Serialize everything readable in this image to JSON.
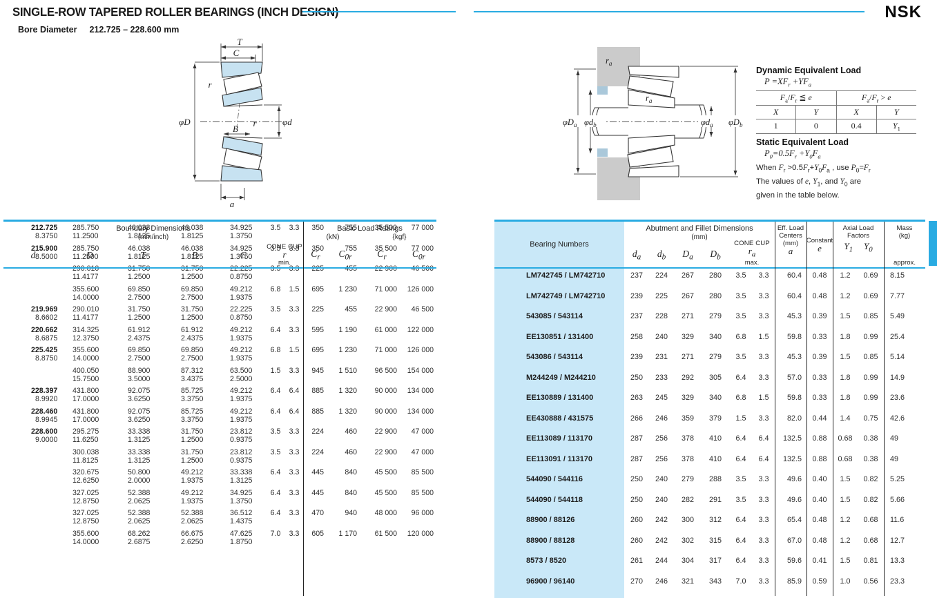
{
  "header": {
    "title": "SINGLE-ROW TAPERED ROLLER BEARINGS (INCH DESIGN)",
    "bore_label": "Bore Diameter",
    "bore_value": "212.725 – 228.600 mm",
    "brand": "NSK"
  },
  "colors": {
    "accent": "#29abe2",
    "bearing_column_bg": "#c9e8f8",
    "diagram_ring_blue": "#c7e2f1",
    "housing_gray": "#cbcbcb"
  },
  "diagram_left": {
    "labels": {
      "T": "T",
      "C": "C",
      "r_top": "r",
      "B": "B",
      "r_mid": "r",
      "phiD": "φD",
      "phid": "φd",
      "a": "a"
    }
  },
  "diagram_right": {
    "labels": {
      "ra_top": {
        "main": "r",
        "sub": "a"
      },
      "ra_mid": {
        "main": "r",
        "sub": "a"
      },
      "phiDa": {
        "main": "φD",
        "sub": "a"
      },
      "phidb": {
        "main": "φd",
        "sub": "b"
      },
      "phida": {
        "main": "φd",
        "sub": "a"
      },
      "phiDb": {
        "main": "φD",
        "sub": "b"
      }
    }
  },
  "equivalent_load": {
    "dynamic_title": "Dynamic Equivalent Load",
    "dynamic_formula_html": "<i>P</i> =<i>XF</i><sub>r</sub> +<i>YF</i><sub>a</sub>",
    "table": {
      "cond_le_html": "<i>F</i><sub>a</sub>/<i>F</i><sub>r</sub> ≦ <i>e</i>",
      "cond_gt_html": "<i>F</i><sub>a</sub>/<i>F</i><sub>r</sub> &gt; <i>e</i>",
      "col_headers_html": [
        "<i>X</i>",
        "<i>Y</i>",
        "<i>X</i>",
        "<i>Y</i>"
      ],
      "values_html": [
        "1",
        "0",
        "0.4",
        "<i>Y</i><sub>1</sub>"
      ]
    },
    "static_title": "Static Equivalent Load",
    "static_formula_html": "<i>P</i><sub>0</sub>=0.5<i>F</i><sub>r</sub> +<i>Y</i><sub>0</sub><i>F</i><sub>a</sub>",
    "note1_html": "When <i>F</i><sub>r</sub> &gt;0.5<i>F</i><sub>r</sub>+<i>Y</i><sub>0</sub><i>F</i><sub>a</sub> , use <i>P</i><sub>0</sub>=<i>F</i><sub>r</sub>",
    "note2_html": "The values of <i>e</i>, <i>Y</i><sub>1</sub>, and <i>Y</i><sub>0</sub> are",
    "note3": "given in the table below."
  },
  "left_table": {
    "group1": "Boundary Dimensions",
    "group1_sub": "(mm/inch)",
    "group2": "Basic Load Ratings",
    "group2_kn": "(kN)",
    "group2_kgf": "{kgf}",
    "cone": "CONE",
    "cup": "CUP",
    "r_html": "<i>r</i>",
    "r_min": "min.",
    "cols_html": [
      "<i>d</i>",
      "<i>D</i>",
      "<i>T</i>",
      "<i>B</i>",
      "<i>C</i>"
    ],
    "load_cols_html": [
      "<i>C</i><sub>r</sub>",
      "<i>C</i><sub>0r</sub>",
      "<i>C</i><sub>r</sub>",
      "<i>C</i><sub>0r</sub>"
    ],
    "rows": [
      {
        "d": {
          "mm": "212.725",
          "in": "8.3750"
        },
        "D": {
          "mm": "285.750",
          "in": "11.2500"
        },
        "T": {
          "mm": "46.038",
          "in": "1.8125"
        },
        "B": {
          "mm": "46.038",
          "in": "1.8125"
        },
        "C": {
          "mm": "34.925",
          "in": "1.3750"
        },
        "r_cone": "3.5",
        "r_cup": "3.3",
        "cr_kn": "350",
        "c0r_kn": "755",
        "cr_kgf": "35 500",
        "c0r_kgf": "77 000"
      },
      {
        "d": {
          "mm": "215.900",
          "in": "8.5000"
        },
        "D": {
          "mm": "285.750",
          "in": "11.2500"
        },
        "T": {
          "mm": "46.038",
          "in": "1.8125"
        },
        "B": {
          "mm": "46.038",
          "in": "1.8125"
        },
        "C": {
          "mm": "34.925",
          "in": "1.3750"
        },
        "r_cone": "3.5",
        "r_cup": "3.3",
        "cr_kn": "350",
        "c0r_kn": "755",
        "cr_kgf": "35 500",
        "c0r_kgf": "77 000"
      },
      {
        "d": {
          "mm": "",
          "in": ""
        },
        "D": {
          "mm": "290.010",
          "in": "11.4177"
        },
        "T": {
          "mm": "31.750",
          "in": "1.2500"
        },
        "B": {
          "mm": "31.750",
          "in": "1.2500"
        },
        "C": {
          "mm": "22.225",
          "in": "0.8750"
        },
        "r_cone": "3.5",
        "r_cup": "3.3",
        "cr_kn": "225",
        "c0r_kn": "455",
        "cr_kgf": "22 900",
        "c0r_kgf": "46 500"
      },
      {
        "d": {
          "mm": "",
          "in": ""
        },
        "D": {
          "mm": "355.600",
          "in": "14.0000"
        },
        "T": {
          "mm": "69.850",
          "in": "2.7500"
        },
        "B": {
          "mm": "69.850",
          "in": "2.7500"
        },
        "C": {
          "mm": "49.212",
          "in": "1.9375"
        },
        "r_cone": "6.8",
        "r_cup": "1.5",
        "cr_kn": "695",
        "c0r_kn": "1 230",
        "cr_kgf": "71 000",
        "c0r_kgf": "126 000"
      },
      {
        "d": {
          "mm": "219.969",
          "in": "8.6602"
        },
        "D": {
          "mm": "290.010",
          "in": "11.4177"
        },
        "T": {
          "mm": "31.750",
          "in": "1.2500"
        },
        "B": {
          "mm": "31.750",
          "in": "1.2500"
        },
        "C": {
          "mm": "22.225",
          "in": "0.8750"
        },
        "r_cone": "3.5",
        "r_cup": "3.3",
        "cr_kn": "225",
        "c0r_kn": "455",
        "cr_kgf": "22 900",
        "c0r_kgf": "46 500"
      },
      {
        "d": {
          "mm": "220.662",
          "in": "8.6875"
        },
        "D": {
          "mm": "314.325",
          "in": "12.3750"
        },
        "T": {
          "mm": "61.912",
          "in": "2.4375"
        },
        "B": {
          "mm": "61.912",
          "in": "2.4375"
        },
        "C": {
          "mm": "49.212",
          "in": "1.9375"
        },
        "r_cone": "6.4",
        "r_cup": "3.3",
        "cr_kn": "595",
        "c0r_kn": "1 190",
        "cr_kgf": "61 000",
        "c0r_kgf": "122 000"
      },
      {
        "d": {
          "mm": "225.425",
          "in": "8.8750"
        },
        "D": {
          "mm": "355.600",
          "in": "14.0000"
        },
        "T": {
          "mm": "69.850",
          "in": "2.7500"
        },
        "B": {
          "mm": "69.850",
          "in": "2.7500"
        },
        "C": {
          "mm": "49.212",
          "in": "1.9375"
        },
        "r_cone": "6.8",
        "r_cup": "1.5",
        "cr_kn": "695",
        "c0r_kn": "1 230",
        "cr_kgf": "71 000",
        "c0r_kgf": "126 000"
      },
      {
        "d": {
          "mm": "",
          "in": ""
        },
        "D": {
          "mm": "400.050",
          "in": "15.7500"
        },
        "T": {
          "mm": "88.900",
          "in": "3.5000"
        },
        "B": {
          "mm": "87.312",
          "in": "3.4375"
        },
        "C": {
          "mm": "63.500",
          "in": "2.5000"
        },
        "r_cone": "1.5",
        "r_cup": "3.3",
        "cr_kn": "945",
        "c0r_kn": "1 510",
        "cr_kgf": "96 500",
        "c0r_kgf": "154 000"
      },
      {
        "d": {
          "mm": "228.397",
          "in": "8.9920"
        },
        "D": {
          "mm": "431.800",
          "in": "17.0000"
        },
        "T": {
          "mm": "92.075",
          "in": "3.6250"
        },
        "B": {
          "mm": "85.725",
          "in": "3.3750"
        },
        "C": {
          "mm": "49.212",
          "in": "1.9375"
        },
        "r_cone": "6.4",
        "r_cup": "6.4",
        "cr_kn": "885",
        "c0r_kn": "1 320",
        "cr_kgf": "90 000",
        "c0r_kgf": "134 000"
      },
      {
        "d": {
          "mm": "228.460",
          "in": "8.9945"
        },
        "D": {
          "mm": "431.800",
          "in": "17.0000"
        },
        "T": {
          "mm": "92.075",
          "in": "3.6250"
        },
        "B": {
          "mm": "85.725",
          "in": "3.3750"
        },
        "C": {
          "mm": "49.212",
          "in": "1.9375"
        },
        "r_cone": "6.4",
        "r_cup": "6.4",
        "cr_kn": "885",
        "c0r_kn": "1 320",
        "cr_kgf": "90 000",
        "c0r_kgf": "134 000"
      },
      {
        "d": {
          "mm": "228.600",
          "in": "9.0000"
        },
        "D": {
          "mm": "295.275",
          "in": "11.6250"
        },
        "T": {
          "mm": "33.338",
          "in": "1.3125"
        },
        "B": {
          "mm": "31.750",
          "in": "1.2500"
        },
        "C": {
          "mm": "23.812",
          "in": "0.9375"
        },
        "r_cone": "3.5",
        "r_cup": "3.3",
        "cr_kn": "224",
        "c0r_kn": "460",
        "cr_kgf": "22 900",
        "c0r_kgf": "47 000"
      },
      {
        "d": {
          "mm": "",
          "in": ""
        },
        "D": {
          "mm": "300.038",
          "in": "11.8125"
        },
        "T": {
          "mm": "33.338",
          "in": "1.3125"
        },
        "B": {
          "mm": "31.750",
          "in": "1.2500"
        },
        "C": {
          "mm": "23.812",
          "in": "0.9375"
        },
        "r_cone": "3.5",
        "r_cup": "3.3",
        "cr_kn": "224",
        "c0r_kn": "460",
        "cr_kgf": "22 900",
        "c0r_kgf": "47 000"
      },
      {
        "d": {
          "mm": "",
          "in": ""
        },
        "D": {
          "mm": "320.675",
          "in": "12.6250"
        },
        "T": {
          "mm": "50.800",
          "in": "2.0000"
        },
        "B": {
          "mm": "49.212",
          "in": "1.9375"
        },
        "C": {
          "mm": "33.338",
          "in": "1.3125"
        },
        "r_cone": "6.4",
        "r_cup": "3.3",
        "cr_kn": "445",
        "c0r_kn": "840",
        "cr_kgf": "45 500",
        "c0r_kgf": "85 500"
      },
      {
        "d": {
          "mm": "",
          "in": ""
        },
        "D": {
          "mm": "327.025",
          "in": "12.8750"
        },
        "T": {
          "mm": "52.388",
          "in": "2.0625"
        },
        "B": {
          "mm": "49.212",
          "in": "1.9375"
        },
        "C": {
          "mm": "34.925",
          "in": "1.3750"
        },
        "r_cone": "6.4",
        "r_cup": "3.3",
        "cr_kn": "445",
        "c0r_kn": "840",
        "cr_kgf": "45 500",
        "c0r_kgf": "85 500"
      },
      {
        "d": {
          "mm": "",
          "in": ""
        },
        "D": {
          "mm": "327.025",
          "in": "12.8750"
        },
        "T": {
          "mm": "52.388",
          "in": "2.0625"
        },
        "B": {
          "mm": "52.388",
          "in": "2.0625"
        },
        "C": {
          "mm": "36.512",
          "in": "1.4375"
        },
        "r_cone": "6.4",
        "r_cup": "3.3",
        "cr_kn": "470",
        "c0r_kn": "940",
        "cr_kgf": "48 000",
        "c0r_kgf": "96 000"
      },
      {
        "d": {
          "mm": "",
          "in": ""
        },
        "D": {
          "mm": "355.600",
          "in": "14.0000"
        },
        "T": {
          "mm": "68.262",
          "in": "2.6875"
        },
        "B": {
          "mm": "66.675",
          "in": "2.6250"
        },
        "C": {
          "mm": "47.625",
          "in": "1.8750"
        },
        "r_cone": "7.0",
        "r_cup": "3.3",
        "cr_kn": "605",
        "c0r_kn": "1 170",
        "cr_kgf": "61 500",
        "c0r_kgf": "120 000"
      }
    ]
  },
  "right_table": {
    "bearing_col": "Bearing Numbers",
    "group1": "Abutment and Fillet Dimensions",
    "group1_sub": "(mm)",
    "cols_html": [
      "<i>d</i><sub>a</sub>",
      "<i>d</i><sub>b</sub>",
      "<i>D</i><sub>a</sub>",
      "<i>D</i><sub>b</sub>"
    ],
    "cone": "CONE",
    "cup": "CUP",
    "ra_html": "<i>r</i><sub>a</sub>",
    "ra_max": "max.",
    "eff_lines": [
      "Eff. Load",
      "Centers",
      "(mm)"
    ],
    "eff_sym_html": "<i>a</i>",
    "constant_label": "Constant",
    "constant_sym_html": "<i>e</i>",
    "axial_lines": [
      "Axial Load",
      "Factors"
    ],
    "axial_syms_html": [
      "<i>Y</i><sub>1</sub>",
      "<i>Y</i><sub>0</sub>"
    ],
    "mass_lines": [
      "Mass",
      "(kg)"
    ],
    "mass_approx": "approx.",
    "rows": [
      {
        "bearing": "LM742745 / LM742710",
        "da": "237",
        "db": "224",
        "Da": "267",
        "Db": "280",
        "ra_cone": "3.5",
        "ra_cup": "3.3",
        "a": "60.4",
        "e": "0.48",
        "y1": "1.2",
        "y0": "0.69",
        "mass": "8.15"
      },
      {
        "bearing": "LM742749 / LM742710",
        "da": "239",
        "db": "225",
        "Da": "267",
        "Db": "280",
        "ra_cone": "3.5",
        "ra_cup": "3.3",
        "a": "60.4",
        "e": "0.48",
        "y1": "1.2",
        "y0": "0.69",
        "mass": "7.77"
      },
      {
        "bearing": "543085 / 543114",
        "da": "237",
        "db": "228",
        "Da": "271",
        "Db": "279",
        "ra_cone": "3.5",
        "ra_cup": "3.3",
        "a": "45.3",
        "e": "0.39",
        "y1": "1.5",
        "y0": "0.85",
        "mass": "5.49"
      },
      {
        "bearing": "EE130851 / 131400",
        "da": "258",
        "db": "240",
        "Da": "329",
        "Db": "340",
        "ra_cone": "6.8",
        "ra_cup": "1.5",
        "a": "59.8",
        "e": "0.33",
        "y1": "1.8",
        "y0": "0.99",
        "mass": "25.4"
      },
      {
        "bearing": "543086 / 543114",
        "da": "239",
        "db": "231",
        "Da": "271",
        "Db": "279",
        "ra_cone": "3.5",
        "ra_cup": "3.3",
        "a": "45.3",
        "e": "0.39",
        "y1": "1.5",
        "y0": "0.85",
        "mass": "5.14"
      },
      {
        "bearing": "M244249 / M244210",
        "da": "250",
        "db": "233",
        "Da": "292",
        "Db": "305",
        "ra_cone": "6.4",
        "ra_cup": "3.3",
        "a": "57.0",
        "e": "0.33",
        "y1": "1.8",
        "y0": "0.99",
        "mass": "14.9"
      },
      {
        "bearing": "EE130889 / 131400",
        "da": "263",
        "db": "245",
        "Da": "329",
        "Db": "340",
        "ra_cone": "6.8",
        "ra_cup": "1.5",
        "a": "59.8",
        "e": "0.33",
        "y1": "1.8",
        "y0": "0.99",
        "mass": "23.6"
      },
      {
        "bearing": "EE430888 / 431575",
        "da": "266",
        "db": "246",
        "Da": "359",
        "Db": "379",
        "ra_cone": "1.5",
        "ra_cup": "3.3",
        "a": "82.0",
        "e": "0.44",
        "y1": "1.4",
        "y0": "0.75",
        "mass": "42.6"
      },
      {
        "bearing": "EE113089 / 113170",
        "da": "287",
        "db": "256",
        "Da": "378",
        "Db": "410",
        "ra_cone": "6.4",
        "ra_cup": "6.4",
        "a": "132.5",
        "e": "0.88",
        "y1": "0.68",
        "y0": "0.38",
        "mass": "49"
      },
      {
        "bearing": "EE113091 / 113170",
        "da": "287",
        "db": "256",
        "Da": "378",
        "Db": "410",
        "ra_cone": "6.4",
        "ra_cup": "6.4",
        "a": "132.5",
        "e": "0.88",
        "y1": "0.68",
        "y0": "0.38",
        "mass": "49"
      },
      {
        "bearing": "544090 / 544116",
        "da": "250",
        "db": "240",
        "Da": "279",
        "Db": "288",
        "ra_cone": "3.5",
        "ra_cup": "3.3",
        "a": "49.6",
        "e": "0.40",
        "y1": "1.5",
        "y0": "0.82",
        "mass": "5.25"
      },
      {
        "bearing": "544090 / 544118",
        "da": "250",
        "db": "240",
        "Da": "282",
        "Db": "291",
        "ra_cone": "3.5",
        "ra_cup": "3.3",
        "a": "49.6",
        "e": "0.40",
        "y1": "1.5",
        "y0": "0.82",
        "mass": "5.66"
      },
      {
        "bearing": "88900 / 88126",
        "da": "260",
        "db": "242",
        "Da": "300",
        "Db": "312",
        "ra_cone": "6.4",
        "ra_cup": "3.3",
        "a": "65.4",
        "e": "0.48",
        "y1": "1.2",
        "y0": "0.68",
        "mass": "11.6"
      },
      {
        "bearing": "88900 / 88128",
        "da": "260",
        "db": "242",
        "Da": "302",
        "Db": "315",
        "ra_cone": "6.4",
        "ra_cup": "3.3",
        "a": "67.0",
        "e": "0.48",
        "y1": "1.2",
        "y0": "0.68",
        "mass": "12.7"
      },
      {
        "bearing": "8573 / 8520",
        "da": "261",
        "db": "244",
        "Da": "304",
        "Db": "317",
        "ra_cone": "6.4",
        "ra_cup": "3.3",
        "a": "59.6",
        "e": "0.41",
        "y1": "1.5",
        "y0": "0.81",
        "mass": "13.3"
      },
      {
        "bearing": "96900 / 96140",
        "da": "270",
        "db": "246",
        "Da": "321",
        "Db": "343",
        "ra_cone": "7.0",
        "ra_cup": "3.3",
        "a": "85.9",
        "e": "0.59",
        "y1": "1.0",
        "y0": "0.56",
        "mass": "23.3"
      }
    ]
  }
}
